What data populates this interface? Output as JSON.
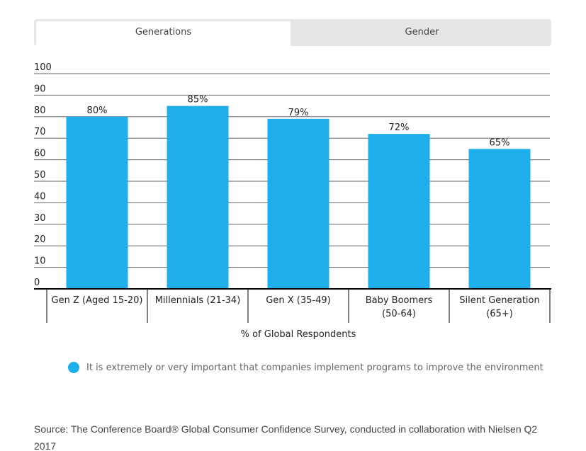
{
  "tabs": [
    {
      "label": "Generations",
      "active": true
    },
    {
      "label": "Gender",
      "active": false
    }
  ],
  "colors": {
    "bar": "#1eaeec",
    "grid": "#666666",
    "axis": "#000000"
  },
  "chart_data": {
    "type": "bar",
    "categories": [
      [
        "Gen Z (Aged 15-20)"
      ],
      [
        "Millennials (21-34)"
      ],
      [
        "Gen X (35-49)"
      ],
      [
        "Baby Boomers",
        "(50-64)"
      ],
      [
        "Silent Generation",
        "(65+)"
      ]
    ],
    "series": [
      {
        "name": "It is extremely or very important that companies implement programs to improve the environment",
        "values": [
          80,
          85,
          79,
          72,
          65
        ],
        "labels": [
          "80%",
          "85%",
          "79%",
          "72%",
          "65%"
        ]
      }
    ],
    "title": "",
    "xlabel": "% of Global Respondents",
    "ylabel": "",
    "ylim": [
      0,
      100
    ],
    "yticks": [
      "0",
      "10",
      "20",
      "30",
      "40",
      "50",
      "60",
      "70",
      "80",
      "90",
      "100"
    ],
    "grid": true,
    "legend_position": "bottom-left"
  },
  "source": "Source: The Conference Board® Global Consumer Confidence Survey, conducted in collaboration with Nielsen Q2 2017"
}
